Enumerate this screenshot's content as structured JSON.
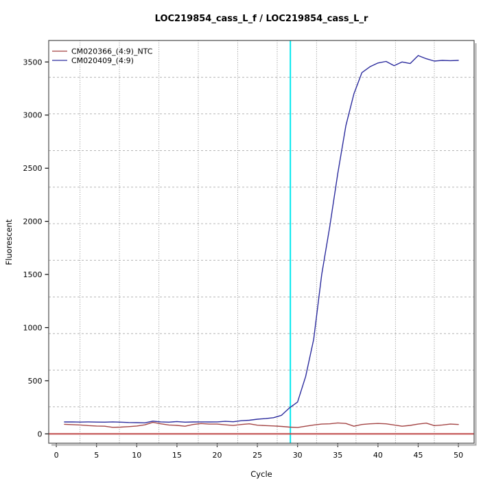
{
  "figure": {
    "title": "LOC219854_cass_L_f / LOC219854_cass_L_r"
  },
  "chart_data": {
    "type": "line",
    "title": "LOC219854_cass_L_f / LOC219854_cass_L_r",
    "xlabel": "Cycle",
    "ylabel": "Fluorescent",
    "xlim": [
      -0.95,
      51.95
    ],
    "ylim": [
      -88,
      3702
    ],
    "x_ticks": [
      0,
      5,
      10,
      15,
      20,
      25,
      30,
      35,
      40,
      45,
      50
    ],
    "y_ticks": [
      0,
      500,
      1000,
      1500,
      2000,
      2500,
      3000,
      3500
    ],
    "grid": {
      "vertical_at_cycles": [
        2.94,
        7.84,
        12.75,
        17.65,
        22.56,
        27.46,
        32.36,
        37.27,
        42.17,
        47.0
      ],
      "horizontal_at_values": [
        255,
        600,
        944,
        1288,
        1633,
        1978,
        2322,
        2666,
        3012,
        3356
      ],
      "vertical_style": "dotted",
      "horizontal_style": "dashed",
      "color": "#9a9a9a"
    },
    "threshold_line": {
      "value": 0,
      "color": "#be4545"
    },
    "ct_marker_line": {
      "cycle": 29.1,
      "color": "#00e8ee"
    },
    "cycles_start": 1,
    "series": [
      {
        "name": "CM020366_(4:9)_NTC",
        "color": "#a34343",
        "values": [
          90,
          87,
          84,
          78,
          74,
          72,
          62,
          64,
          68,
          74,
          85,
          108,
          95,
          84,
          80,
          72,
          88,
          97,
          92,
          92,
          85,
          79,
          88,
          95,
          82,
          78,
          75,
          70,
          64,
          60,
          72,
          84,
          92,
          95,
          103,
          98,
          72,
          88,
          95,
          98,
          95,
          84,
          72,
          80,
          92,
          101,
          78,
          84,
          92,
          88
        ]
      },
      {
        "name": "CM020409_(4:9)",
        "color": "#2b2b9d",
        "values": [
          112,
          113,
          111,
          113,
          111,
          110,
          113,
          110,
          107,
          106,
          104,
          120,
          113,
          110,
          116,
          110,
          112,
          113,
          112,
          113,
          118,
          114,
          124,
          128,
          138,
          144,
          152,
          175,
          245,
          300,
          540,
          890,
          1500,
          1950,
          2450,
          2900,
          3200,
          3400,
          3455,
          3490,
          3505,
          3465,
          3500,
          3485,
          3560,
          3530,
          3508,
          3515,
          3512,
          3515
        ]
      }
    ],
    "legend": {
      "position": "top-left",
      "entries": [
        "CM020366_(4:9)_NTC",
        "CM020409_(4:9)"
      ]
    }
  }
}
